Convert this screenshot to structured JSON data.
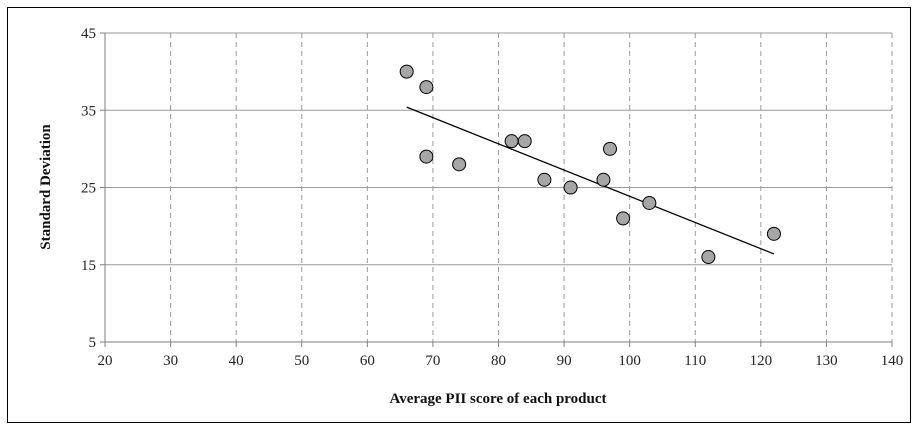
{
  "chart_data": {
    "type": "scatter",
    "title": "",
    "xlabel": "Average PII score of each product",
    "ylabel": "Standard Deviation",
    "xlim": [
      20,
      140
    ],
    "ylim": [
      5,
      45
    ],
    "x_ticks": [
      20,
      30,
      40,
      50,
      60,
      70,
      80,
      90,
      100,
      110,
      120,
      130,
      140
    ],
    "y_ticks": [
      5,
      15,
      25,
      35,
      45
    ],
    "x_tick_labels": [
      "20",
      "30",
      "40",
      "50",
      "60",
      "70",
      "80",
      "90",
      "100",
      "110",
      "120",
      "130",
      "140"
    ],
    "y_tick_labels": [
      "5",
      "15",
      "25",
      "35",
      "45"
    ],
    "grid": {
      "horizontal": "solid",
      "vertical": "dashed"
    },
    "series": [
      {
        "marker_color": "#a6a6a6",
        "marker_edge": "#000000",
        "points": [
          {
            "x": 66,
            "y": 40
          },
          {
            "x": 69,
            "y": 38
          },
          {
            "x": 69,
            "y": 29
          },
          {
            "x": 74,
            "y": 28
          },
          {
            "x": 82,
            "y": 31
          },
          {
            "x": 84,
            "y": 31
          },
          {
            "x": 87,
            "y": 26
          },
          {
            "x": 91,
            "y": 25
          },
          {
            "x": 96,
            "y": 26
          },
          {
            "x": 97,
            "y": 30
          },
          {
            "x": 99,
            "y": 21
          },
          {
            "x": 103,
            "y": 23
          },
          {
            "x": 112,
            "y": 16
          },
          {
            "x": 122,
            "y": 19
          }
        ]
      }
    ],
    "trendline": {
      "type": "linear",
      "x_range": [
        66,
        122
      ],
      "y_values": [
        35.4,
        16.4
      ],
      "color": "#000000"
    }
  }
}
